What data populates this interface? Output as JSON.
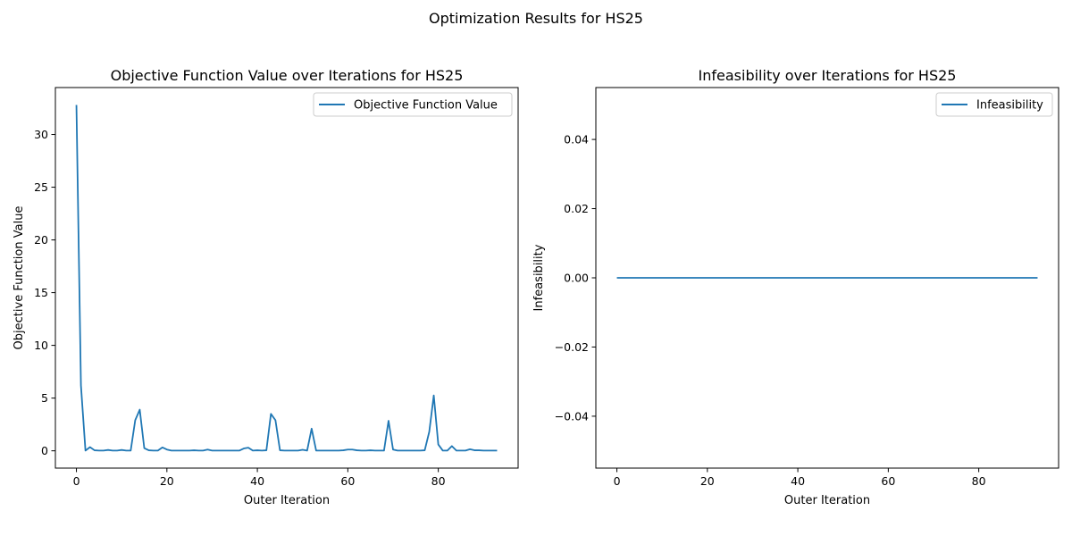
{
  "suptitle": "Optimization Results for HS25",
  "chart_data": [
    {
      "type": "line",
      "title": "Objective Function Value over Iterations for HS25",
      "xlabel": "Outer Iteration",
      "ylabel": "Objective Function Value",
      "xlim": [
        -4.65,
        97.65
      ],
      "ylim": [
        -1.64,
        34.45
      ],
      "xticks": [
        0,
        20,
        40,
        60,
        80
      ],
      "xtick_labels": [
        "0",
        "20",
        "40",
        "60",
        "80"
      ],
      "yticks": [
        0,
        5,
        10,
        15,
        20,
        25,
        30
      ],
      "ytick_labels": [
        "0",
        "5",
        "10",
        "15",
        "20",
        "25",
        "30"
      ],
      "grid": false,
      "legend_position": "upper right",
      "color": "#1f77b4",
      "series": [
        {
          "name": "Objective Function Value",
          "x": [
            0,
            1,
            2,
            3,
            4,
            5,
            6,
            7,
            8,
            9,
            10,
            11,
            12,
            13,
            14,
            15,
            16,
            17,
            18,
            19,
            20,
            21,
            22,
            23,
            24,
            25,
            26,
            27,
            28,
            29,
            30,
            31,
            32,
            33,
            34,
            35,
            36,
            37,
            38,
            39,
            40,
            41,
            42,
            43,
            44,
            45,
            46,
            47,
            48,
            49,
            50,
            51,
            52,
            53,
            54,
            55,
            56,
            57,
            58,
            59,
            60,
            61,
            62,
            63,
            64,
            65,
            66,
            67,
            68,
            69,
            70,
            71,
            72,
            73,
            74,
            75,
            76,
            77,
            78,
            79,
            80,
            81,
            82,
            83,
            84,
            85,
            86,
            87,
            88,
            89,
            90,
            91,
            92,
            93
          ],
          "y": [
            32.8,
            6.2,
            0.02,
            0.35,
            0.05,
            0.02,
            0.02,
            0.08,
            0.02,
            0.02,
            0.08,
            0.02,
            0.02,
            2.9,
            3.9,
            0.25,
            0.05,
            0.02,
            0.02,
            0.32,
            0.12,
            0.02,
            0.02,
            0.02,
            0.02,
            0.02,
            0.05,
            0.02,
            0.02,
            0.12,
            0.02,
            0.02,
            0.02,
            0.02,
            0.02,
            0.02,
            0.02,
            0.22,
            0.3,
            0.02,
            0.05,
            0.02,
            0.05,
            3.5,
            2.9,
            0.05,
            0.02,
            0.02,
            0.02,
            0.02,
            0.1,
            0.02,
            2.1,
            0.02,
            0.02,
            0.02,
            0.02,
            0.02,
            0.02,
            0.05,
            0.12,
            0.12,
            0.05,
            0.02,
            0.02,
            0.05,
            0.02,
            0.02,
            0.02,
            2.85,
            0.12,
            0.02,
            0.02,
            0.02,
            0.02,
            0.02,
            0.02,
            0.05,
            1.8,
            5.25,
            0.6,
            0.02,
            0.02,
            0.45,
            0.02,
            0.02,
            0.02,
            0.15,
            0.05,
            0.05,
            0.02,
            0.02,
            0.02,
            0.02
          ]
        }
      ]
    },
    {
      "type": "line",
      "title": "Infeasibility over Iterations for HS25",
      "xlabel": "Outer Iteration",
      "ylabel": "Infeasibility",
      "xlim": [
        -4.65,
        97.65
      ],
      "ylim": [
        -0.055,
        0.055
      ],
      "xticks": [
        0,
        20,
        40,
        60,
        80
      ],
      "xtick_labels": [
        "0",
        "20",
        "40",
        "60",
        "80"
      ],
      "yticks": [
        -0.04,
        -0.02,
        0.0,
        0.02,
        0.04
      ],
      "ytick_labels": [
        "−0.04",
        "−0.02",
        "0.00",
        "0.02",
        "0.04"
      ],
      "grid": false,
      "legend_position": "upper right",
      "color": "#1f77b4",
      "series": [
        {
          "name": "Infeasibility",
          "x": [
            0,
            93
          ],
          "y": [
            0,
            0
          ]
        }
      ]
    }
  ]
}
